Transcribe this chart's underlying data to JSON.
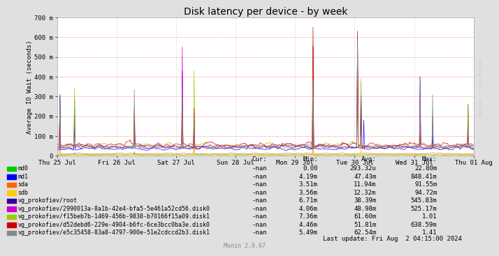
{
  "title": "Disk latency per device - by week",
  "ylabel": "Average IO Wait (seconds)",
  "background_color": "#e0e0e0",
  "plot_background_color": "#ffffff",
  "ytick_labels": [
    "0",
    "100 m",
    "200 m",
    "300 m",
    "400 m",
    "500 m",
    "600 m",
    "700 m"
  ],
  "ytick_values": [
    0,
    100,
    200,
    300,
    400,
    500,
    600,
    700
  ],
  "xtick_labels": [
    "Thu 25 Jul",
    "Fri 26 Jul",
    "Sat 27 Jul",
    "Sun 28 Jul",
    "Mon 29 Jul",
    "Tue 30 Jul",
    "Wed 31 Jul",
    "Thu 01 Aug"
  ],
  "series": [
    {
      "name": "md0",
      "color": "#00cc00"
    },
    {
      "name": "md1",
      "color": "#0000ff"
    },
    {
      "name": "sda",
      "color": "#ff6600"
    },
    {
      "name": "sdb",
      "color": "#ffcc00"
    },
    {
      "name": "vg_prokofiev/root",
      "color": "#330099"
    },
    {
      "name": "vg_prokofiev/2990013a-8a1b-42e4-bfa5-5e461a52cd56.disk0",
      "color": "#cc00cc"
    },
    {
      "name": "vg_prokofiev/f15beb7b-1469-456b-9838-b70166f15a09.disk1",
      "color": "#99cc00"
    },
    {
      "name": "vg_prokofiev/d52debd6-229e-4904-b6fc-6ce3bcc0ba3e.disk0",
      "color": "#cc0000"
    },
    {
      "name": "vg_prokofiev/e5c35458-83a8-4797-900e-51e2cdccd2b3.disk1",
      "color": "#888888"
    }
  ],
  "legend_data": [
    {
      "name": "md0",
      "cur": "-nan",
      "min": "0.00",
      "avg": "293.32u",
      "max": "22.80m"
    },
    {
      "name": "md1",
      "cur": "-nan",
      "min": "4.19m",
      "avg": "47.43m",
      "max": "848.41m"
    },
    {
      "name": "sda",
      "cur": "-nan",
      "min": "3.51m",
      "avg": "11.94m",
      "max": "91.55m"
    },
    {
      "name": "sdb",
      "cur": "-nan",
      "min": "3.56m",
      "avg": "12.32m",
      "max": "94.72m"
    },
    {
      "name": "vg_prokofiev/root",
      "cur": "-nan",
      "min": "6.71m",
      "avg": "38.39m",
      "max": "545.83m"
    },
    {
      "name": "vg_prokofiev/2990013a-8a1b-42e4-bfa5-5e461a52cd56.disk0",
      "cur": "-nan",
      "min": "4.06m",
      "avg": "48.98m",
      "max": "525.17m"
    },
    {
      "name": "vg_prokofiev/f15beb7b-1469-456b-9838-b70166f15a09.disk1",
      "cur": "-nan",
      "min": "7.36m",
      "avg": "61.60m",
      "max": "1.01"
    },
    {
      "name": "vg_prokofiev/d52debd6-229e-4904-b6fc-6ce3bcc0ba3e.disk0",
      "cur": "-nan",
      "min": "4.46m",
      "avg": "51.81m",
      "max": "638.59m"
    },
    {
      "name": "vg_prokofiev/e5c35458-83a8-4797-900e-51e2cdccd2b3.disk1",
      "cur": "-nan",
      "min": "5.49m",
      "avg": "62.54m",
      "max": "1.41"
    }
  ],
  "last_update": "Last update: Fri Aug  2 04:15:00 2024",
  "munin_version": "Munin 2.0.67",
  "watermark": "RRDTOOL / TOBI OETIKER"
}
